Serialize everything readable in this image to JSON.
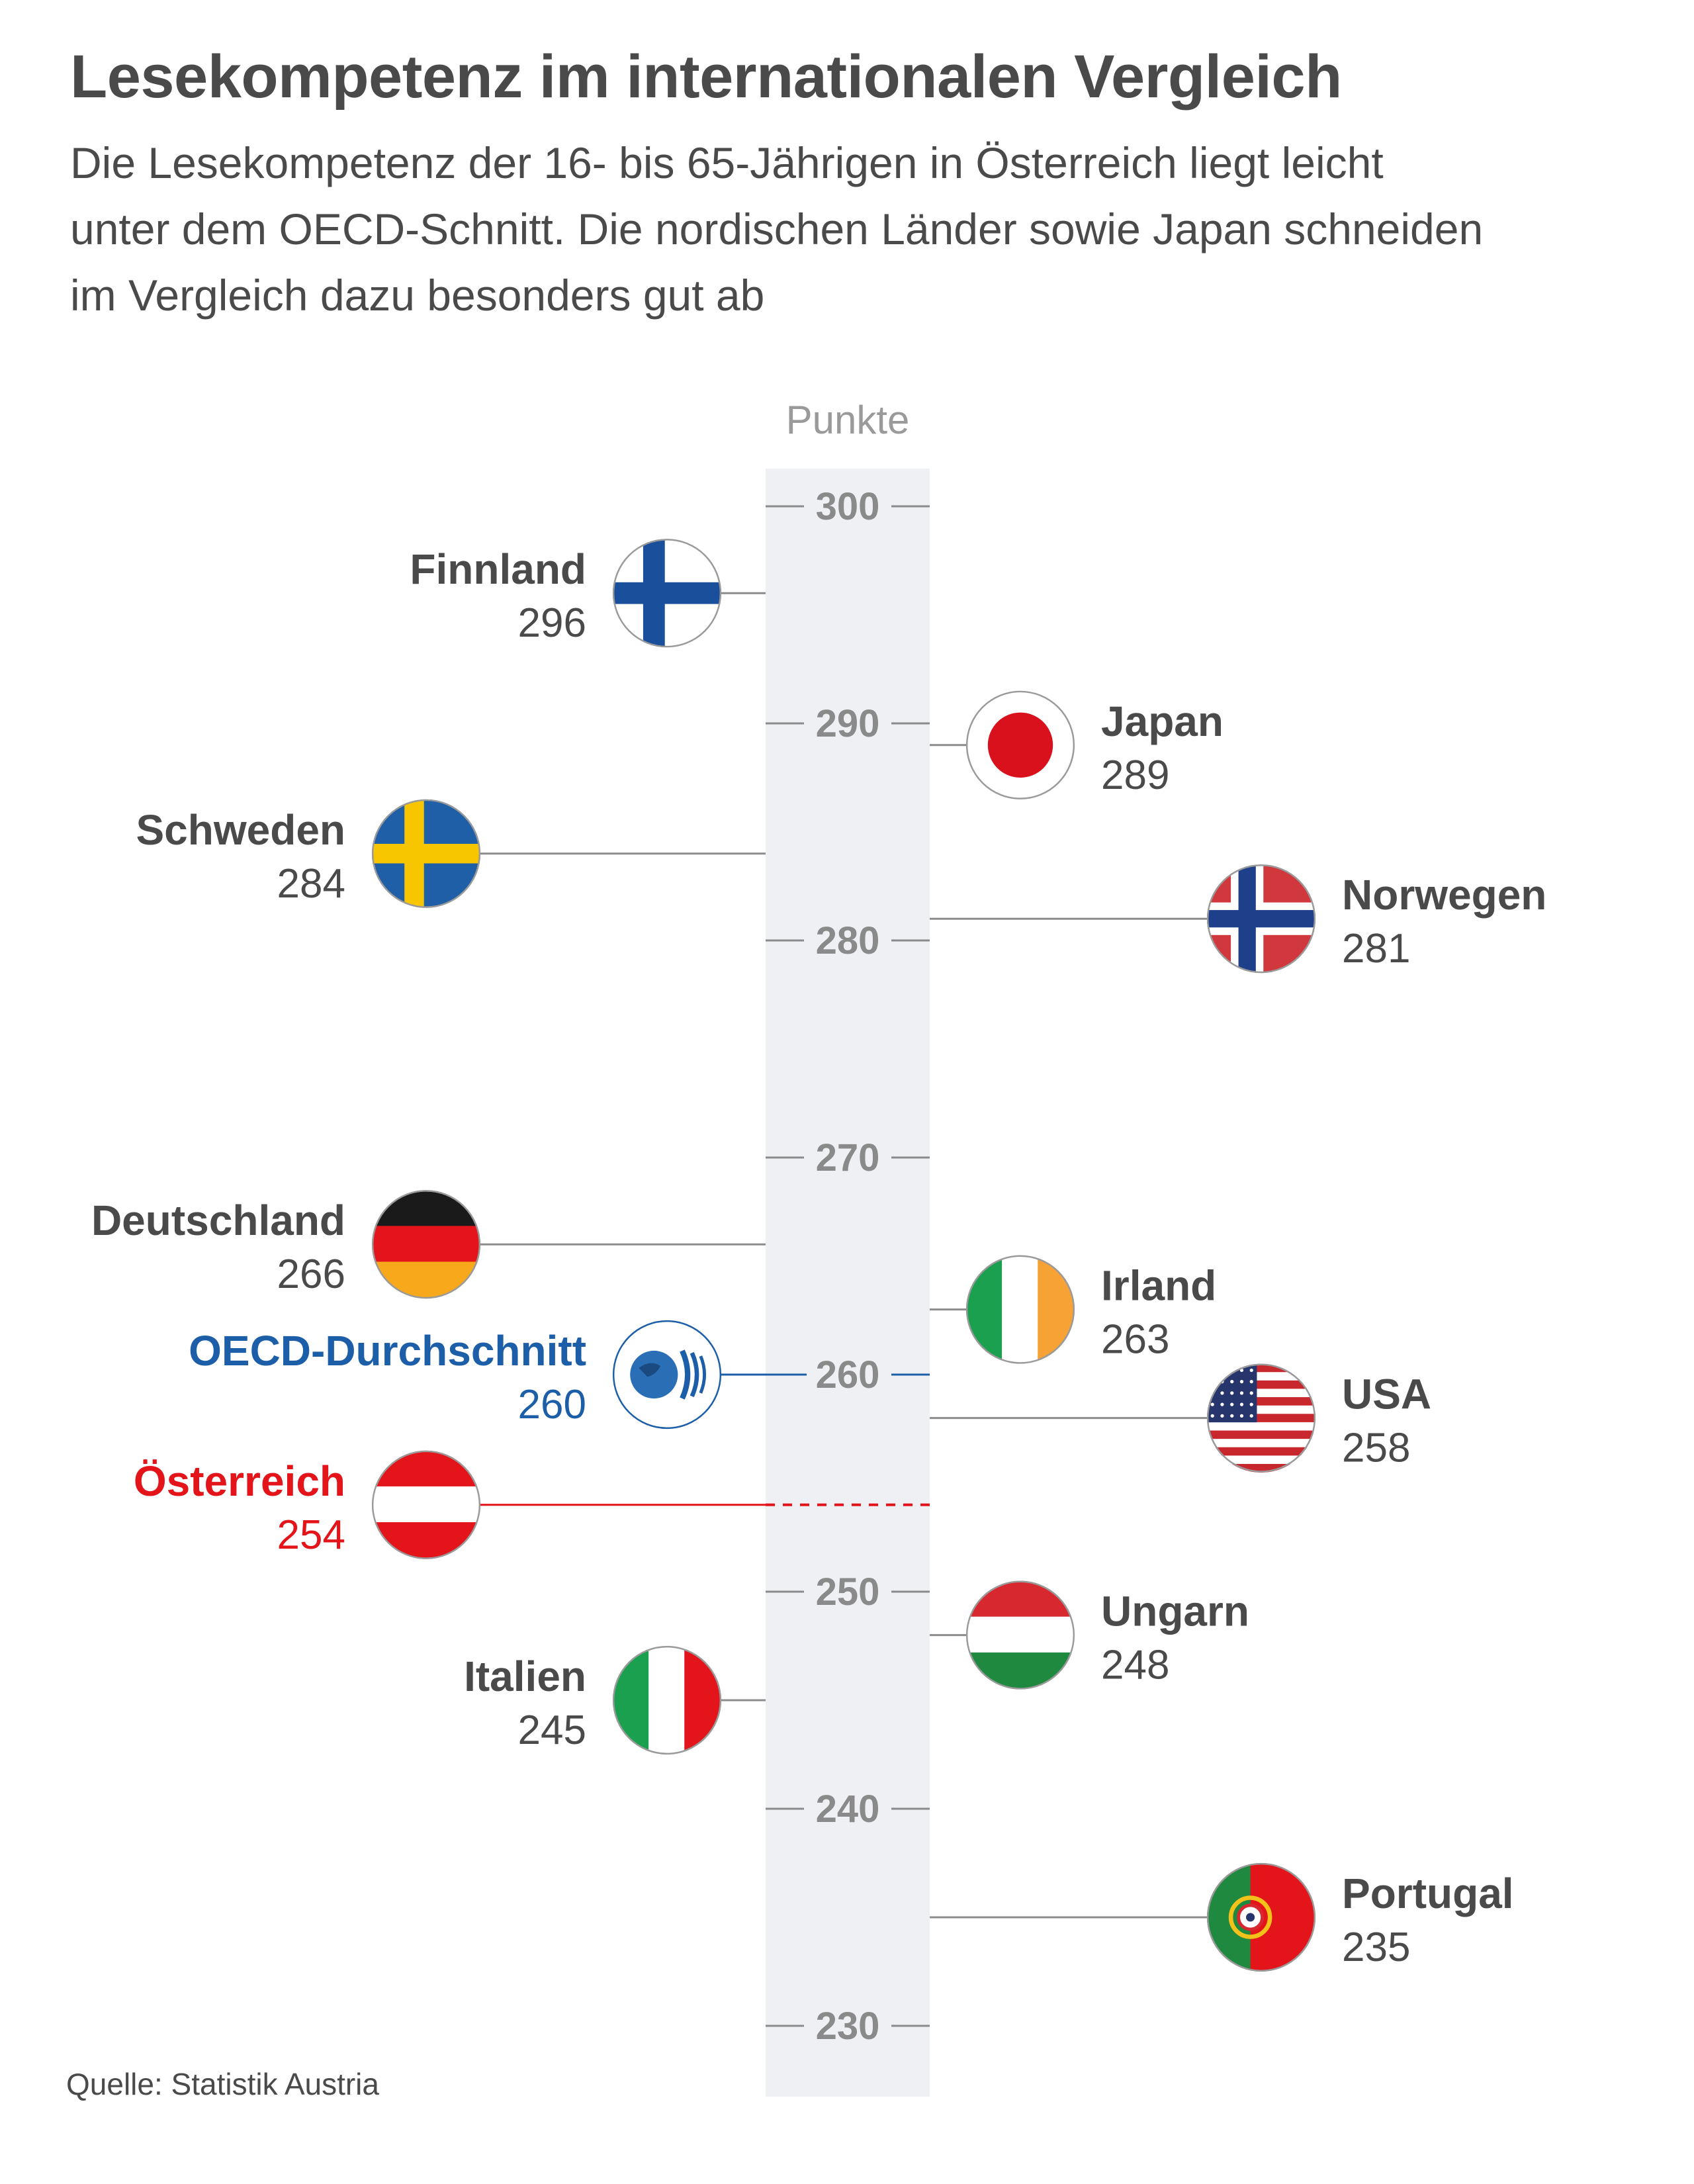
{
  "title": "Lesekompetenz im internationalen Vergleich",
  "subtitle": "Die Lesekompetenz der 16- bis 65-Jährigen in Österreich liegt leicht unter dem OECD-Schnitt. Die nordischen Länder sowie Japan schneiden im Vergleich dazu besonders gut ab",
  "source": "Quelle: Statistik Austria",
  "colors": {
    "text": "#4a4a4a",
    "axis_band": "#eef0f3",
    "tick": "#8a8a8a",
    "oecd": "#1c5fa8",
    "austria": "#e3151a"
  },
  "chart_data": {
    "type": "scatter",
    "title": "Lesekompetenz im internationalen Vergleich",
    "ylabel": "Punkte",
    "ylim": [
      227,
      302
    ],
    "yticks": [
      300,
      290,
      280,
      270,
      260,
      250,
      240,
      230
    ],
    "points": [
      {
        "name": "Finnland",
        "value": 296,
        "side": "left",
        "flag": "finland-flag-icon",
        "dist": 1,
        "highlight": "none"
      },
      {
        "name": "Japan",
        "value": 289,
        "side": "right",
        "flag": "japan-flag-icon",
        "dist": 1,
        "highlight": "none"
      },
      {
        "name": "Schweden",
        "value": 284,
        "side": "left",
        "flag": "sweden-flag-icon",
        "dist": 2,
        "highlight": "none"
      },
      {
        "name": "Norwegen",
        "value": 281,
        "side": "right",
        "flag": "norway-flag-icon",
        "dist": 2,
        "highlight": "none"
      },
      {
        "name": "Deutschland",
        "value": 266,
        "side": "left",
        "flag": "germany-flag-icon",
        "dist": 2,
        "highlight": "none"
      },
      {
        "name": "Irland",
        "value": 263,
        "side": "right",
        "flag": "ireland-flag-icon",
        "dist": 1,
        "highlight": "none"
      },
      {
        "name": "OECD-Durchschnitt",
        "value": 260,
        "side": "left",
        "flag": "oecd-logo-icon",
        "dist": 1,
        "highlight": "oecd"
      },
      {
        "name": "USA",
        "value": 258,
        "side": "right",
        "flag": "usa-flag-icon",
        "dist": 2,
        "highlight": "none"
      },
      {
        "name": "Österreich",
        "value": 254,
        "side": "left",
        "flag": "austria-flag-icon",
        "dist": 2,
        "highlight": "austria"
      },
      {
        "name": "Ungarn",
        "value": 248,
        "side": "right",
        "flag": "hungary-flag-icon",
        "dist": 1,
        "highlight": "none"
      },
      {
        "name": "Italien",
        "value": 245,
        "side": "left",
        "flag": "italy-flag-icon",
        "dist": 1,
        "highlight": "none"
      },
      {
        "name": "Portugal",
        "value": 235,
        "side": "right",
        "flag": "portugal-flag-icon",
        "dist": 2,
        "highlight": "none"
      }
    ]
  }
}
